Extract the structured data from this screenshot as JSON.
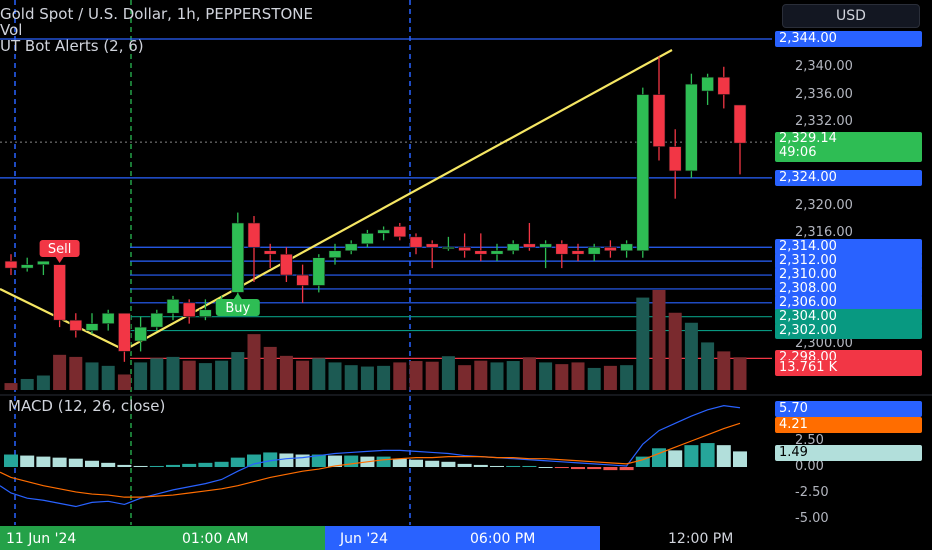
{
  "header": {
    "symbol": "Gold Spot / U.S. Dollar, 1h, PEPPERSTONE",
    "vol": "Vol",
    "indicator": "UT Bot Alerts (2, 6)",
    "currency": "USD"
  },
  "chart_data": {
    "type": "candlestick",
    "ylim": [
      2297,
      2343
    ],
    "price_axis_ticks": [
      "2,340.00",
      "2,336.00",
      "2,332.00",
      "2,320.00",
      "2,316.00",
      "2,300.00"
    ],
    "highlight_levels": [
      {
        "label": "2,344.00",
        "value": 2344,
        "color": "#2962ff"
      },
      {
        "label": "2,324.00",
        "value": 2324,
        "color": "#2962ff"
      },
      {
        "label": "2,314.00",
        "value": 2314,
        "color": "#2962ff"
      },
      {
        "label": "2,312.00",
        "value": 2312,
        "color": "#2962ff"
      },
      {
        "label": "2,310.00",
        "value": 2310,
        "color": "#2962ff"
      },
      {
        "label": "2,308.00",
        "value": 2308,
        "color": "#2962ff"
      },
      {
        "label": "2,306.00",
        "value": 2306,
        "color": "#2962ff"
      },
      {
        "label": "2,304.00",
        "value": 2304,
        "color": "#089981"
      },
      {
        "label": "2,302.00",
        "value": 2302,
        "color": "#089981"
      },
      {
        "label": "2,298.00",
        "value": 2298,
        "color": "#f23645"
      }
    ],
    "last_price": {
      "label": "2,329.14",
      "countdown": "49:06",
      "value": 2329.14
    },
    "volume_label": "13.761 K",
    "candles": [
      [
        2312.0,
        2313.0,
        2310.0,
        2311.0
      ],
      [
        2311.0,
        2312.5,
        2310.5,
        2311.5
      ],
      [
        2311.5,
        2312.0,
        2310.0,
        2312.0
      ],
      [
        2311.5,
        2311.5,
        2302.5,
        2303.5
      ],
      [
        2303.5,
        2304.5,
        2301.0,
        2302.0
      ],
      [
        2302.0,
        2304.5,
        2301.5,
        2303.0
      ],
      [
        2303.0,
        2305.0,
        2302.0,
        2304.5
      ],
      [
        2304.5,
        2304.5,
        2297.5,
        2299.0
      ],
      [
        2300.5,
        2304.0,
        2299.0,
        2302.5
      ],
      [
        2302.5,
        2305.0,
        2302.0,
        2304.5
      ],
      [
        2304.5,
        2307.0,
        2303.5,
        2306.5
      ],
      [
        2306.0,
        2306.5,
        2303.0,
        2304.0
      ],
      [
        2304.0,
        2306.5,
        2303.5,
        2305.0
      ],
      [
        2305.0,
        2307.0,
        2304.5,
        2306.0
      ],
      [
        2307.5,
        2319.0,
        2306.5,
        2317.5
      ],
      [
        2317.5,
        2318.5,
        2309.0,
        2314.0
      ],
      [
        2313.5,
        2314.5,
        2311.0,
        2313.0
      ],
      [
        2313.0,
        2314.0,
        2309.0,
        2310.0
      ],
      [
        2310.0,
        2311.5,
        2306.0,
        2308.5
      ],
      [
        2308.5,
        2313.0,
        2307.5,
        2312.5
      ],
      [
        2312.5,
        2314.5,
        2311.5,
        2313.5
      ],
      [
        2313.5,
        2315.0,
        2313.0,
        2314.5
      ],
      [
        2314.5,
        2316.5,
        2314.0,
        2316.0
      ],
      [
        2316.0,
        2317.0,
        2315.0,
        2316.5
      ],
      [
        2317.0,
        2317.5,
        2315.0,
        2315.5
      ],
      [
        2315.5,
        2316.0,
        2313.0,
        2314.0
      ],
      [
        2314.5,
        2315.0,
        2311.0,
        2314.0
      ],
      [
        2314.0,
        2315.5,
        2313.5,
        2314.0
      ],
      [
        2314.0,
        2316.0,
        2312.5,
        2313.5
      ],
      [
        2313.5,
        2316.0,
        2312.0,
        2313.0
      ],
      [
        2313.0,
        2314.5,
        2312.0,
        2313.5
      ],
      [
        2313.5,
        2315.0,
        2313.0,
        2314.5
      ],
      [
        2314.5,
        2317.5,
        2313.5,
        2314.0
      ],
      [
        2314.0,
        2315.0,
        2311.0,
        2314.5
      ],
      [
        2314.5,
        2315.0,
        2311.0,
        2313.0
      ],
      [
        2313.5,
        2314.5,
        2312.0,
        2313.0
      ],
      [
        2313.0,
        2314.5,
        2312.0,
        2314.0
      ],
      [
        2314.0,
        2315.0,
        2312.5,
        2313.5
      ],
      [
        2313.5,
        2315.0,
        2312.5,
        2314.5
      ],
      [
        2313.5,
        2337.0,
        2312.5,
        2336.0
      ],
      [
        2336.0,
        2341.5,
        2326.5,
        2328.5
      ],
      [
        2328.5,
        2331.0,
        2321.0,
        2325.0
      ],
      [
        2325.0,
        2339.0,
        2324.0,
        2337.5
      ],
      [
        2336.5,
        2339.0,
        2334.5,
        2338.5
      ],
      [
        2338.5,
        2340.0,
        2334.0,
        2336.0
      ],
      [
        2334.5,
        2334.5,
        2324.5,
        2329.0
      ]
    ],
    "volumes": [
      20,
      32,
      42,
      102,
      96,
      80,
      70,
      45,
      80,
      92,
      96,
      85,
      78,
      85,
      110,
      162,
      125,
      99,
      85,
      92,
      80,
      72,
      68,
      70,
      80,
      84,
      82,
      98,
      72,
      85,
      80,
      84,
      95,
      80,
      75,
      80,
      64,
      70,
      72,
      268,
      290,
      224,
      195,
      138,
      112,
      95
    ],
    "macd_axis_ticks": [
      "2.50",
      "0.00",
      "-2.50",
      "-5.00"
    ],
    "macd": {
      "title": "MACD (12, 26, close)",
      "macd": "5.70",
      "signal": "4.21",
      "hist": "1.49",
      "ylim": [
        -5.5,
        8
      ]
    },
    "macd_hist": [
      1.2,
      1.1,
      1.0,
      0.9,
      0.8,
      0.6,
      0.4,
      0.2,
      0.1,
      0.1,
      0.2,
      0.3,
      0.4,
      0.5,
      0.9,
      1.2,
      1.4,
      1.3,
      1.2,
      1.2,
      1.1,
      1.1,
      1.0,
      1.0,
      0.8,
      0.7,
      0.6,
      0.5,
      0.3,
      0.2,
      0.1,
      0.1,
      0.1,
      0,
      -0.1,
      -0.2,
      -0.2,
      -0.3,
      -0.3,
      1.0,
      1.8,
      1.6,
      2.1,
      2.3,
      2.1,
      1.5
    ],
    "macd_line": [
      -2.5,
      -3.0,
      -3.2,
      -3.5,
      -3.8,
      -3.4,
      -3.3,
      -3.6,
      -3.0,
      -2.6,
      -2.2,
      -1.9,
      -1.6,
      -1.2,
      -0.4,
      0.3,
      0.6,
      0.8,
      0.9,
      1.1,
      1.3,
      1.4,
      1.5,
      1.6,
      1.6,
      1.5,
      1.4,
      1.3,
      1.1,
      1.0,
      0.9,
      0.8,
      0.7,
      0.6,
      0.5,
      0.4,
      0.3,
      0.2,
      0.1,
      2.2,
      3.5,
      4.2,
      4.9,
      5.5,
      5.9,
      5.7
    ],
    "signal_line": [
      -1.0,
      -1.4,
      -1.8,
      -2.1,
      -2.4,
      -2.6,
      -2.7,
      -2.9,
      -2.9,
      -2.8,
      -2.7,
      -2.5,
      -2.3,
      -2.1,
      -1.8,
      -1.4,
      -1.0,
      -0.7,
      -0.4,
      -0.2,
      0.1,
      0.3,
      0.5,
      0.7,
      0.8,
      0.9,
      0.9,
      1.0,
      1.0,
      1.0,
      0.9,
      0.9,
      0.8,
      0.8,
      0.7,
      0.6,
      0.5,
      0.4,
      0.3,
      0.7,
      1.3,
      1.9,
      2.5,
      3.1,
      3.7,
      4.2
    ],
    "x_axis_labels": [
      "11 Jun '24",
      "01:00 AM",
      "Jun '24",
      "06:00 PM",
      "12:00 PM"
    ],
    "signals": [
      {
        "label": "Sell",
        "index": 3
      },
      {
        "label": "Buy",
        "index": 14
      }
    ]
  }
}
